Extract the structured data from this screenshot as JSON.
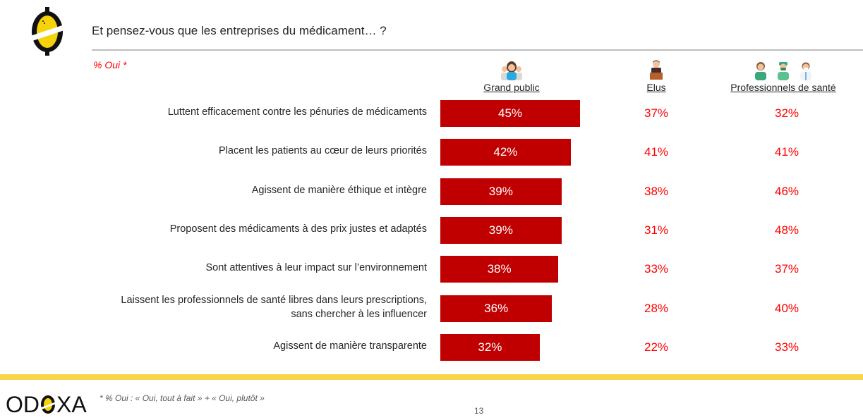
{
  "header": {
    "title": "Et pensez-vous que les entreprises du médicament… ?",
    "subtitle": "% Oui *"
  },
  "columns": [
    {
      "label": "Grand public",
      "icon": "general-public-people-icon"
    },
    {
      "label": "Elus",
      "icon": "elected-official-podium-icon"
    },
    {
      "label": "Professionnels de santé",
      "icon": "health-professionals-icon"
    }
  ],
  "colors": {
    "bar": "#c00000",
    "value_text": "#ff0000",
    "accent_band": "#f7d64a",
    "logo_yellow": "#f5d20a"
  },
  "chart_data": {
    "type": "bar",
    "orientation": "horizontal",
    "title": "Et pensez-vous que les entreprises du médicament… ?",
    "subtitle": "% Oui *",
    "xlabel": "",
    "ylabel": "",
    "xlim": [
      0,
      100
    ],
    "grid": false,
    "categories": [
      "Luttent efficacement contre les pénuries de médicaments",
      "Placent les patients au cœur de leurs priorités",
      "Agissent de manière éthique et intègre",
      "Proposent des médicaments à des prix justes et adaptés",
      "Sont attentives à leur impact sur l’environnement",
      "Laissent les professionnels de santé libres dans leurs prescriptions,\nsans chercher à les influencer",
      "Agissent de manière transparente"
    ],
    "series": [
      {
        "name": "Grand public",
        "display": "bar",
        "values": [
          45,
          42,
          39,
          39,
          38,
          36,
          32
        ]
      },
      {
        "name": "Elus",
        "display": "text",
        "values": [
          37,
          41,
          38,
          31,
          33,
          28,
          22
        ]
      },
      {
        "name": "Professionnels de santé",
        "display": "text",
        "values": [
          32,
          41,
          46,
          48,
          37,
          40,
          33
        ]
      }
    ],
    "value_suffix": "%"
  },
  "footer": {
    "brand": "ODOXA",
    "footnote": "* % Oui : « Oui, tout à fait » + « Oui, plutôt »",
    "page_number": "13"
  }
}
